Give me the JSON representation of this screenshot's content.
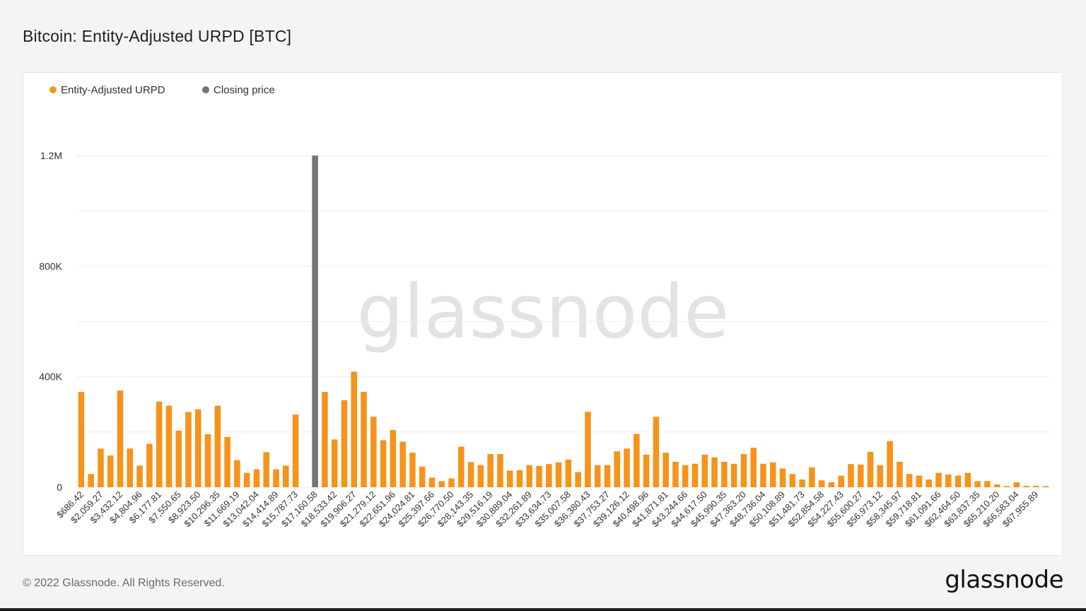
{
  "page": {
    "title": "Bitcoin: Entity-Adjusted URPD [BTC]"
  },
  "footer": {
    "copyright": "© 2022 Glassnode. All Rights Reserved.",
    "logo": "glassnode"
  },
  "watermark": "glassnode",
  "legend": [
    {
      "label": "Entity-Adjusted URPD",
      "color": "#f7931a"
    },
    {
      "label": "Closing price",
      "color": "#757575"
    }
  ],
  "colors": {
    "urpd": "#f7931a",
    "closing_price": "#757575",
    "grid": "#eeeeee",
    "axis_text": "#333333"
  },
  "chart_data": {
    "type": "bar",
    "title": "Bitcoin: Entity-Adjusted URPD [BTC]",
    "xlabel": "",
    "ylabel": "",
    "ylim": [
      0,
      1200000
    ],
    "y_ticks": [
      0,
      400000,
      800000,
      1200000
    ],
    "y_tick_labels": [
      "0",
      "400K",
      "800K",
      "1.2M"
    ],
    "grid": true,
    "legend_position": "top-left",
    "x_tick_labels": [
      "$686.42",
      "$2,059.27",
      "$3,432.12",
      "$4,804.96",
      "$6,177.81",
      "$7,550.65",
      "$8,923.50",
      "$10,296.35",
      "$11,669.19",
      "$13,042.04",
      "$14,414.89",
      "$15,787.73",
      "$17,160.58",
      "$18,533.42",
      "$19,906.27",
      "$21,279.12",
      "$22,651.96",
      "$24,024.81",
      "$25,397.66",
      "$26,770.50",
      "$28,143.35",
      "$29,516.19",
      "$30,889.04",
      "$32,261.89",
      "$33,634.73",
      "$35,007.58",
      "$36,380.43",
      "$37,753.27",
      "$39,126.12",
      "$40,498.96",
      "$41,871.81",
      "$43,244.66",
      "$44,617.50",
      "$45,990.35",
      "$47,363.20",
      "$48,736.04",
      "$50,108.89",
      "$51,481.73",
      "$52,854.58",
      "$54,227.43",
      "$55,600.27",
      "$56,973.12",
      "$58,345.97",
      "$59,718.81",
      "$61,091.66",
      "$62,464.50",
      "$63,837.35",
      "$65,210.20",
      "$66,583.04",
      "$67,955.89"
    ],
    "series": [
      {
        "name": "Entity-Adjusted URPD",
        "values": [
          345000,
          48000,
          140000,
          115000,
          350000,
          140000,
          78000,
          157000,
          310000,
          295000,
          205000,
          272000,
          282000,
          192000,
          295000,
          182000,
          98000,
          52000,
          65000,
          127000,
          65000,
          78000,
          263000,
          0,
          0,
          345000,
          173000,
          315000,
          418000,
          345000,
          255000,
          170000,
          207000,
          165000,
          125000,
          75000,
          35000,
          22000,
          32000,
          147000,
          91000,
          80000,
          120000,
          120000,
          60000,
          62000,
          80000,
          77000,
          84000,
          90000,
          100000,
          55000,
          273000,
          80000,
          80000,
          130000,
          140000,
          193000,
          118000,
          255000,
          125000,
          92000,
          80000,
          85000,
          118000,
          108000,
          92000,
          85000,
          120000,
          143000,
          85000,
          90000,
          68000,
          48000,
          28000,
          72000,
          25000,
          18000,
          42000,
          84000,
          82000,
          128000,
          80000,
          167000,
          92000,
          48000,
          42000,
          28000,
          52000,
          46000,
          42000,
          52000,
          22000,
          22000,
          10000,
          4000,
          18000,
          5000,
          5000,
          4000
        ]
      },
      {
        "name": "Closing price",
        "value": 1200000,
        "x_label": "$17,160.58"
      }
    ]
  }
}
